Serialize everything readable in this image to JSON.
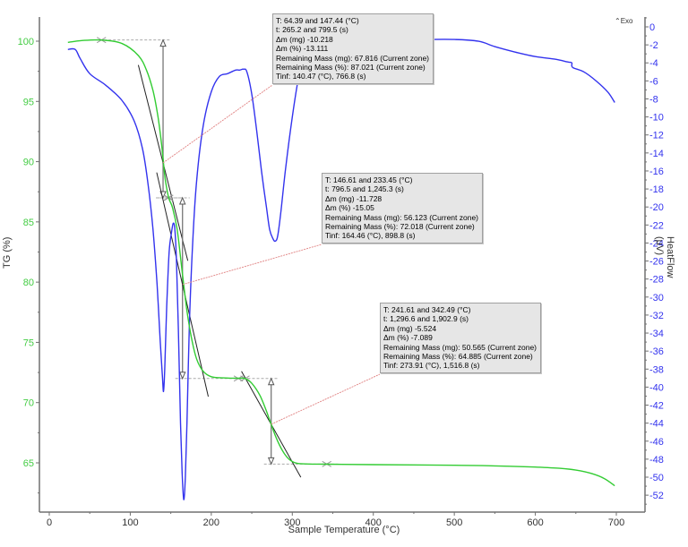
{
  "chart_data": {
    "type": "line",
    "title": "",
    "xlabel": "Sample Temperature (°C)",
    "ylabel": "TG (%)",
    "ylabel_right": "HeatFlow (µV)",
    "exo_marker": "Exo",
    "xlim": [
      -10,
      740
    ],
    "ylim": [
      61.5,
      102
    ],
    "ylim_right": [
      -54,
      1.5
    ],
    "x_ticks": [
      0,
      100,
      200,
      300,
      400,
      500,
      600,
      700
    ],
    "y_ticks": [
      65,
      70,
      75,
      80,
      85,
      90,
      95,
      100
    ],
    "y_ticks_right": [
      0,
      -2,
      -4,
      -6,
      -8,
      -10,
      -12,
      -14,
      -16,
      -18,
      -20,
      -22,
      -24,
      -26,
      -28,
      -30,
      -32,
      -34,
      -36,
      -38,
      -40,
      -42,
      -44,
      -46,
      -48,
      -50,
      -52
    ],
    "grid": false,
    "colors": {
      "tg": "#33cc33",
      "heatflow": "#3333ee",
      "tg_axis": "#44cc44",
      "heatflow_axis": "#3333ee",
      "axis": "#707070",
      "leader": "#e08080"
    },
    "series": [
      {
        "name": "TG (%)",
        "axis": "left",
        "x": [
          23,
          40,
          64.4,
          90,
          110,
          120,
          128,
          134,
          138,
          140.5,
          143,
          147.4,
          152,
          158,
          164.5,
          170,
          176,
          182,
          190,
          200,
          215,
          233.5,
          241.6,
          250,
          260,
          268,
          273.9,
          280,
          288,
          296,
          305,
          320,
          342.5,
          400,
          500,
          550,
          600,
          630,
          650,
          670,
          685,
          698
        ],
        "y": [
          99.9,
          100.05,
          100.1,
          99.8,
          98.8,
          97.6,
          95.9,
          93.8,
          91.8,
          90.2,
          88.6,
          87.0,
          86.2,
          84.3,
          80.6,
          77.6,
          75.2,
          73.6,
          72.6,
          72.15,
          72.05,
          72.02,
          72.0,
          71.6,
          70.6,
          69.3,
          68.2,
          67.1,
          66.0,
          65.3,
          64.98,
          64.9,
          64.89,
          64.85,
          64.8,
          64.75,
          64.65,
          64.55,
          64.4,
          64.1,
          63.7,
          63.1
        ]
      },
      {
        "name": "HeatFlow (µV)",
        "axis": "right",
        "x": [
          23,
          32,
          38,
          50,
          70,
          90,
          105,
          115,
          122,
          128,
          133,
          137,
          139.5,
          141,
          142.5,
          145,
          148,
          151,
          153,
          155,
          157,
          159.5,
          162,
          164,
          166,
          168,
          170,
          173,
          177,
          182,
          190,
          200,
          210,
          220,
          230,
          235,
          240,
          244,
          250,
          256,
          262,
          268,
          272,
          276,
          279,
          282,
          286,
          292,
          300,
          308,
          316,
          322,
          330,
          340,
          360,
          400,
          450,
          500,
          530,
          550,
          575,
          600,
          625,
          640,
          645,
          646,
          660,
          675,
          690,
          698
        ],
        "y": [
          -2.5,
          -2.5,
          -3.5,
          -5.2,
          -6.5,
          -8.2,
          -10.5,
          -13.5,
          -17.5,
          -22.5,
          -28.5,
          -35,
          -38.5,
          -40.5,
          -38,
          -31,
          -25,
          -22.8,
          -21.8,
          -22.5,
          -26,
          -34,
          -44,
          -49.5,
          -52.5,
          -50,
          -44,
          -33,
          -24,
          -17,
          -11,
          -7.2,
          -5.5,
          -5.2,
          -4.8,
          -4.8,
          -4.7,
          -5,
          -7.5,
          -11.5,
          -16,
          -20,
          -22.5,
          -23.5,
          -23.8,
          -23.2,
          -20.5,
          -15.5,
          -10,
          -5.5,
          -2.5,
          -0.9,
          -0.3,
          -1.2,
          -1.3,
          -1.3,
          -1.4,
          -1.4,
          -1.6,
          -2.2,
          -2.8,
          -3.3,
          -3.6,
          -3.9,
          -4.0,
          -4.5,
          -5.0,
          -6.0,
          -7.3,
          -8.4
        ]
      }
    ],
    "mass_loss_steps": [
      {
        "T_range_C": [
          64.39,
          147.44
        ],
        "t_range_s": [
          265.2,
          799.5
        ],
        "dm_mg": -10.218,
        "dm_pct": -13.111,
        "remaining_mass_mg": 67.816,
        "remaining_mass_pct": 87.021,
        "Tinf_C": 140.47,
        "Tinf_s": 766.8,
        "tg_start": 100.1,
        "tg_end": 87.0,
        "tg_inf": 89.9
      },
      {
        "T_range_C": [
          146.61,
          233.45
        ],
        "t_range_s": [
          796.5,
          1245.3
        ],
        "dm_mg": -11.728,
        "dm_pct": -15.05,
        "remaining_mass_mg": 56.123,
        "remaining_mass_pct": 72.018,
        "Tinf_C": 164.46,
        "Tinf_s": 898.8,
        "tg_start": 87.0,
        "tg_end": 72.0,
        "tg_inf": 79.8
      },
      {
        "T_range_C": [
          241.61,
          342.49
        ],
        "t_range_s": [
          1296.6,
          1902.9
        ],
        "dm_mg": -5.524,
        "dm_pct": -7.089,
        "remaining_mass_mg": 50.565,
        "remaining_mass_pct": 64.885,
        "Tinf_C": 273.91,
        "Tinf_s": 1516.8,
        "tg_start": 72.0,
        "tg_end": 64.9,
        "tg_inf": 68.2
      }
    ],
    "annotations": [
      {
        "lines": [
          "T: 64.39 and 147.44 (°C)",
          "t: 265.2 and 799.5 (s)",
          "Δm (mg) -10.218",
          "Δm (%) -13.111",
          "Remaining Mass (mg): 67.816 (Current zone)",
          "Remaining Mass (%): 87.021 (Current zone)",
          "Tinf: 140.47 (°C), 766.8 (s)"
        ]
      },
      {
        "lines": [
          "T: 146.61 and 233.45 (°C)",
          "t: 796.5 and 1,245.3 (s)",
          "Δm (mg) -11.728",
          "Δm (%) -15.05",
          "Remaining Mass (mg): 56.123 (Current zone)",
          "Remaining Mass (%): 72.018 (Current zone)",
          "Tinf: 164.46 (°C), 898.8 (s)"
        ]
      },
      {
        "lines": [
          "T: 241.61 and 342.49 (°C)",
          "t: 1,296.6 and 1,902.9 (s)",
          "Δm (mg) -5.524",
          "Δm (%) -7.089",
          "Remaining Mass (mg): 50.565 (Current zone)",
          "Remaining Mass (%): 64.885 (Current zone)",
          "Tinf: 273.91 (°C), 1,516.8 (s)"
        ]
      }
    ]
  }
}
